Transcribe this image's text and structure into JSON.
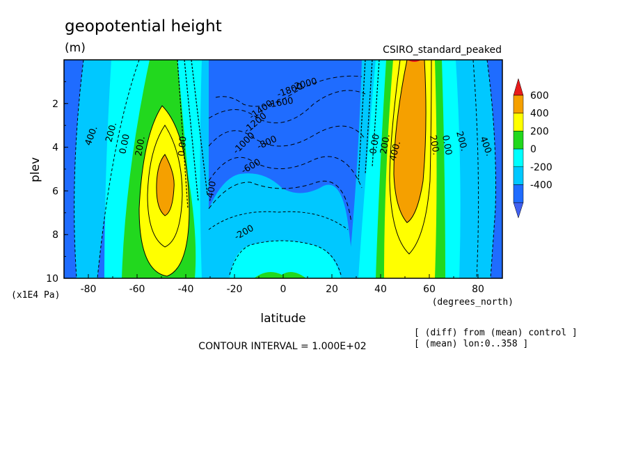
{
  "chart_data": {
    "type": "heatmap",
    "title": "geopotential height",
    "units": "(m)",
    "dataset_label": "CSIRO_standard_peaked",
    "xlabel": "latitude",
    "xunits": "(degrees_north)",
    "ylabel": "plev",
    "yunits": "(x1E4 Pa)",
    "x_ticks": [
      "-80",
      "-60",
      "-40",
      "-20",
      "0",
      "20",
      "40",
      "60",
      "80"
    ],
    "y_ticks": [
      "2",
      "4",
      "6",
      "8",
      "10"
    ],
    "xlim": [
      -90,
      90
    ],
    "ylim": [
      10,
      0
    ],
    "contour_interval_text": "CONTOUR INTERVAL = 1.000E+02",
    "notes": [
      "[ (diff) from (mean) control ]",
      "[ (mean) lon:0..358 ]"
    ],
    "colorbar": {
      "labels": [
        "600",
        "400",
        "200",
        "0",
        "-200",
        "-400"
      ],
      "colors": [
        "#e81b1b",
        "#f5a000",
        "#ffff00",
        "#22d81e",
        "#00ffff",
        "#00c8ff",
        "#1f6cff",
        "#4060f0"
      ]
    },
    "contour_labels": [
      "400.",
      "200.",
      "0.00",
      "200.",
      "0.00",
      "-2000",
      "-1800",
      "-1600",
      "-1400",
      "-1200",
      "-1000",
      "-800",
      "-600",
      "-400",
      "-200",
      "0.00",
      "200.",
      "400.",
      "200.",
      "0.00",
      "200.",
      "400."
    ],
    "grid": false
  }
}
